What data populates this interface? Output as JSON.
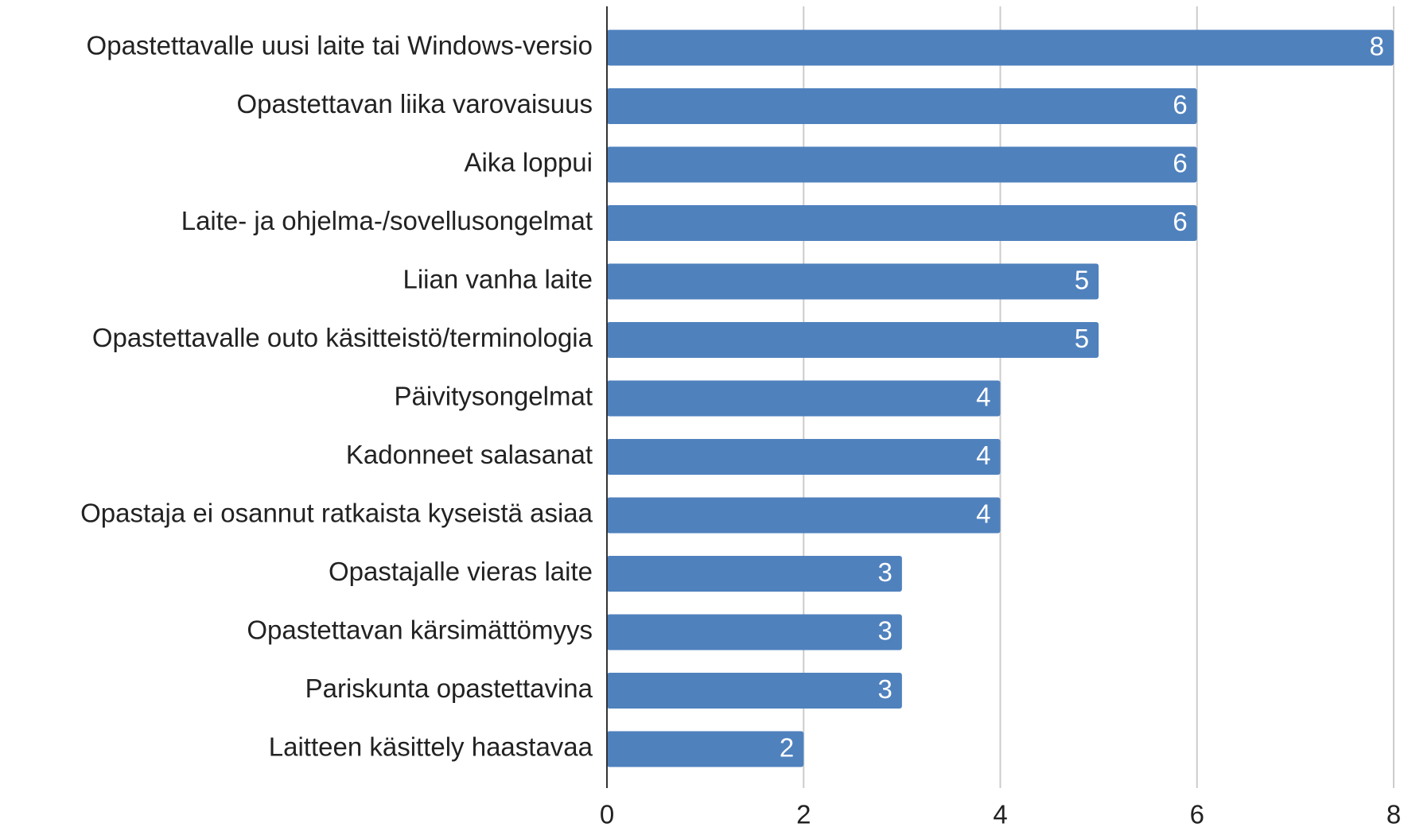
{
  "chart_data": {
    "type": "bar",
    "orientation": "horizontal",
    "categories": [
      "Opastettavalle uusi laite tai Windows-versio",
      "Opastettavan liika varovaisuus",
      "Aika loppui",
      "Laite- ja ohjelma-/sovellusongelmat",
      "Liian vanha laite",
      "Opastettavalle outo käsitteistö/terminologia",
      "Päivitysongelmat",
      "Kadonneet salasanat",
      "Opastaja ei osannut ratkaista kyseistä asiaa",
      "Opastajalle vieras laite",
      "Opastettavan kärsimättömyys",
      "Pariskunta opastettavina",
      "Laitteen käsittely haastavaa"
    ],
    "values": [
      8,
      6,
      6,
      6,
      5,
      5,
      4,
      4,
      4,
      3,
      3,
      3,
      2
    ],
    "color": "#4f81bd",
    "xlim": [
      0,
      8
    ],
    "xticks": [
      0,
      2,
      4,
      6,
      8
    ],
    "grid": true
  }
}
